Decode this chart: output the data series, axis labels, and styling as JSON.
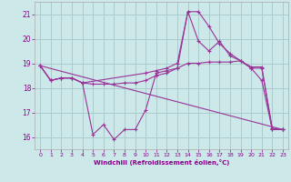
{
  "xlabel": "Windchill (Refroidissement éolien,°C)",
  "bg_color": "#cce8e8",
  "grid_color": "#aacccc",
  "line_color": "#993399",
  "ylim": [
    15.5,
    21.5
  ],
  "xlim": [
    -0.5,
    23.5
  ],
  "yticks": [
    16,
    17,
    18,
    19,
    20,
    21
  ],
  "xticks": [
    0,
    1,
    2,
    3,
    4,
    5,
    6,
    7,
    8,
    9,
    10,
    11,
    12,
    13,
    14,
    15,
    16,
    17,
    18,
    19,
    20,
    21,
    22,
    23
  ],
  "series": [
    {
      "x": [
        0,
        1,
        2,
        3,
        4,
        5,
        6,
        7,
        8,
        9,
        10,
        11,
        12,
        13,
        14,
        15,
        16,
        17,
        18,
        19,
        20,
        21,
        22,
        23
      ],
      "y": [
        18.9,
        18.3,
        18.4,
        18.4,
        18.2,
        16.1,
        16.5,
        15.9,
        16.3,
        16.3,
        17.1,
        18.6,
        18.7,
        18.8,
        21.1,
        21.1,
        20.5,
        19.8,
        19.4,
        19.1,
        18.8,
        18.3,
        16.3,
        16.3
      ]
    },
    {
      "x": [
        0,
        1,
        2,
        3,
        4,
        10,
        11,
        12,
        13,
        14,
        15,
        16,
        17,
        18,
        19,
        20,
        21,
        22,
        23
      ],
      "y": [
        18.9,
        18.3,
        18.4,
        18.4,
        18.2,
        18.6,
        18.7,
        18.8,
        19.0,
        21.1,
        19.9,
        19.5,
        19.9,
        19.3,
        19.1,
        18.8,
        18.8,
        16.3,
        16.3
      ]
    },
    {
      "x": [
        0,
        1,
        2,
        3,
        4,
        5,
        6,
        7,
        8,
        9,
        10,
        11,
        12,
        13,
        14,
        15,
        16,
        17,
        18,
        19,
        20,
        21,
        22,
        23
      ],
      "y": [
        18.9,
        18.3,
        18.4,
        18.4,
        18.2,
        18.15,
        18.15,
        18.15,
        18.2,
        18.2,
        18.3,
        18.5,
        18.6,
        18.8,
        19.0,
        19.0,
        19.05,
        19.05,
        19.05,
        19.1,
        18.85,
        18.85,
        16.35,
        16.3
      ]
    },
    {
      "x": [
        0,
        23
      ],
      "y": [
        18.9,
        16.3
      ]
    }
  ]
}
